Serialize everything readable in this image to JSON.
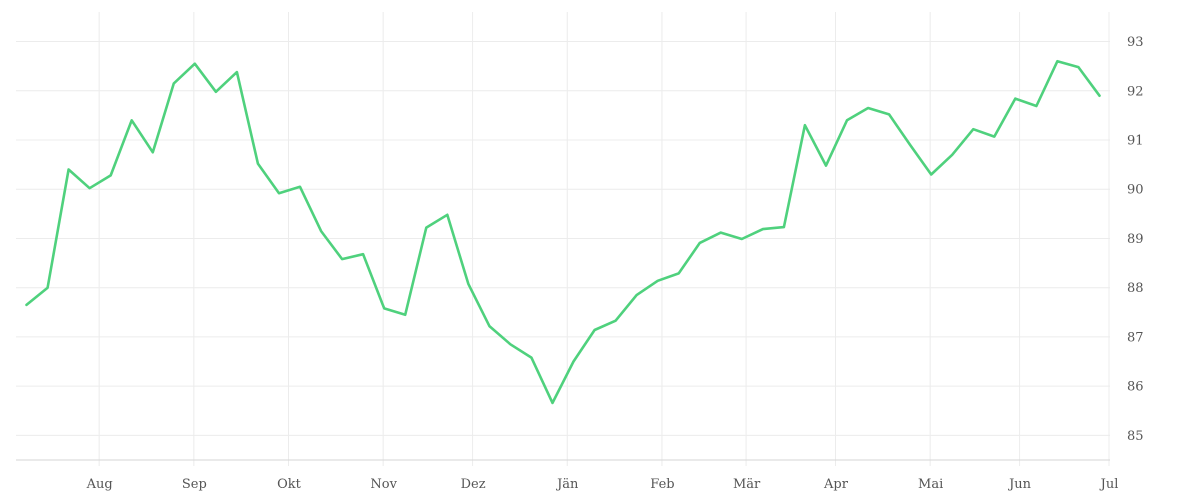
{
  "chart_data": {
    "type": "line",
    "title": "",
    "xlabel": "",
    "ylabel": "",
    "x_axis": {
      "categories": [
        "Aug",
        "Sep",
        "Okt",
        "Nov",
        "Dez",
        "Jän",
        "Feb",
        "Mär",
        "Apr",
        "Mai",
        "Jun",
        "Jul"
      ],
      "range_weeks": [
        -3,
        49
      ]
    },
    "y_axis": {
      "position": "right",
      "ticks": [
        85,
        86,
        87,
        88,
        89,
        90,
        91,
        92,
        93
      ],
      "range": [
        84.5,
        93.6
      ]
    },
    "grid": true,
    "legend": "none",
    "series": [
      {
        "color": "#4fd17d",
        "x": [
          -2.5,
          -1.5,
          -0.5,
          0.5,
          1.5,
          2.5,
          3.5,
          4.5,
          5.5,
          6.5,
          7.5,
          8.5,
          9.5,
          10.5,
          11.5,
          12.5,
          13.5,
          14.5,
          15.5,
          16.5,
          17.5,
          18.5,
          19.5,
          20.5,
          21.5,
          22.5,
          23.5,
          24.5,
          25.5,
          26.5,
          27.5,
          28.5,
          29.5,
          30.5,
          31.5,
          32.5,
          33.5,
          34.5,
          35.5,
          36.5,
          37.5,
          38.5,
          39.5,
          40.5,
          41.5,
          42.5,
          43.5,
          44.5,
          45.5,
          46.5,
          47.5,
          48.5
        ],
        "values": [
          87.65,
          88.0,
          90.4,
          90.02,
          90.28,
          91.4,
          90.75,
          92.15,
          92.55,
          91.98,
          92.38,
          90.52,
          89.92,
          90.05,
          89.15,
          88.58,
          88.68,
          87.58,
          87.45,
          89.22,
          89.48,
          88.08,
          87.22,
          86.85,
          86.58,
          85.66,
          86.5,
          87.14,
          87.33,
          87.85,
          88.14,
          88.29,
          88.91,
          89.12,
          88.99,
          89.19,
          89.23,
          91.3,
          90.48,
          91.4,
          91.65,
          91.52,
          90.9,
          90.3,
          90.7,
          91.22,
          91.07,
          91.84,
          91.69,
          92.6,
          92.48,
          91.9
        ]
      }
    ]
  }
}
